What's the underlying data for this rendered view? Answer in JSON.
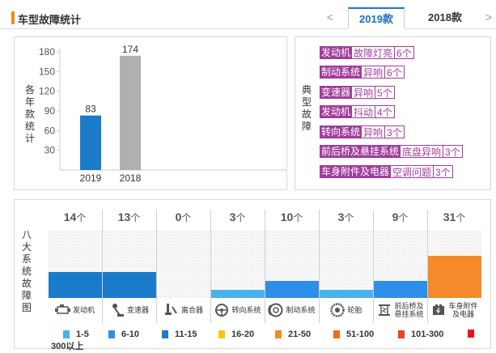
{
  "header": {
    "title": "车型故障统计",
    "prev_arrow": "<",
    "next_arrow": ">",
    "tabs": [
      {
        "label": "2019款",
        "active": true
      },
      {
        "label": "2018款",
        "active": false
      }
    ]
  },
  "chart_data": {
    "type": "bar",
    "categories": [
      "2019",
      "2018"
    ],
    "values": [
      83,
      174
    ],
    "ylabel": "各年款统计",
    "yticks": [
      30,
      60,
      90,
      120,
      150,
      180
    ],
    "ylim": [
      0,
      180
    ],
    "colors": [
      "#1a7bc9",
      "#b0b0b0"
    ],
    "grid": false
  },
  "faults": {
    "label": "典型故障",
    "items": [
      {
        "category": "发动机",
        "issue": "故障灯亮",
        "count": "6个"
      },
      {
        "category": "制动系统",
        "issue": "异响",
        "count": "6个"
      },
      {
        "category": "变速器",
        "issue": "异响",
        "count": "5个"
      },
      {
        "category": "发动机",
        "issue": "抖动",
        "count": "4个"
      },
      {
        "category": "转向系统",
        "issue": "异响",
        "count": "3个"
      },
      {
        "category": "前后桥及悬挂系统",
        "issue": "底盘异响",
        "count": "3个"
      },
      {
        "category": "车身附件及电器",
        "issue": "空调问题",
        "count": "3个"
      }
    ]
  },
  "systems": {
    "label": "八大系统故障图",
    "unit": "个",
    "items": [
      {
        "name": "发动机",
        "count": "14",
        "fill": 0.38,
        "color": "#1a7bc9",
        "icon": "engine-icon"
      },
      {
        "name": "变速器",
        "count": "13",
        "fill": 0.38,
        "color": "#1a7bc9",
        "icon": "gearshift-icon"
      },
      {
        "name": "离合器",
        "count": "0",
        "fill": 0,
        "color": "#1a7bc9",
        "icon": "clutch-pedal-icon"
      },
      {
        "name": "转向系统",
        "count": "3",
        "fill": 0.12,
        "color": "#48b2ec",
        "icon": "steering-wheel-icon"
      },
      {
        "name": "制动系统",
        "count": "10",
        "fill": 0.25,
        "color": "#2f8fe8",
        "icon": "brake-disc-icon"
      },
      {
        "name": "轮胎",
        "count": "3",
        "fill": 0.12,
        "color": "#48b2ec",
        "icon": "tire-icon"
      },
      {
        "name": "前后桥及悬挂系统",
        "name_line1": "前后桥及",
        "name_line2": "悬挂系统",
        "count": "9",
        "fill": 0.25,
        "color": "#2f8fe8",
        "icon": "suspension-icon"
      },
      {
        "name": "车身附件及电器",
        "name_line1": "车身附件",
        "name_line2": "及电器",
        "count": "31",
        "fill": 0.62,
        "color": "#f48a2a",
        "icon": "body-electric-icon"
      }
    ]
  },
  "legend": [
    {
      "label": "1-5",
      "color": "#48b2ec"
    },
    {
      "label": "6-10",
      "color": "#2f8fe8"
    },
    {
      "label": "11-15",
      "color": "#1a7bc9"
    },
    {
      "label": "16-20",
      "color": "#f5c518"
    },
    {
      "label": "21-50",
      "color": "#f48a2a"
    },
    {
      "label": "51-100",
      "color": "#f06a1e"
    },
    {
      "label": "101-300",
      "color": "#e8481c"
    },
    {
      "label": "300以上",
      "color": "#e8141c"
    }
  ]
}
